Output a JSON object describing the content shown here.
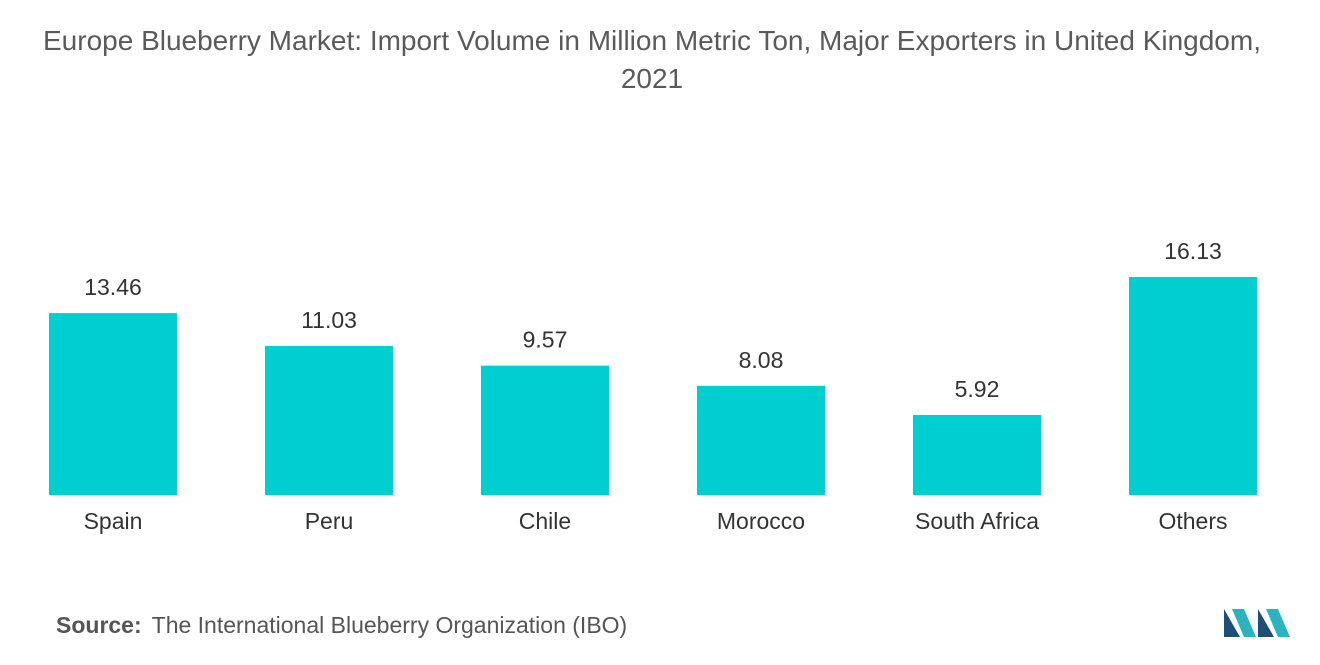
{
  "chart_data": {
    "type": "bar",
    "title": "Europe Blueberry Market: Import Volume in Million Metric Ton, Major Exporters in United Kingdom, 2021",
    "categories": [
      "Spain",
      "Peru",
      "Chile",
      "Morocco",
      "South Africa",
      "Others"
    ],
    "values": [
      13.46,
      11.03,
      9.57,
      8.08,
      5.92,
      16.13
    ],
    "color": "#00cfd1",
    "source_label": "Source:",
    "source": "The International Blueberry Organization (IBO)"
  }
}
